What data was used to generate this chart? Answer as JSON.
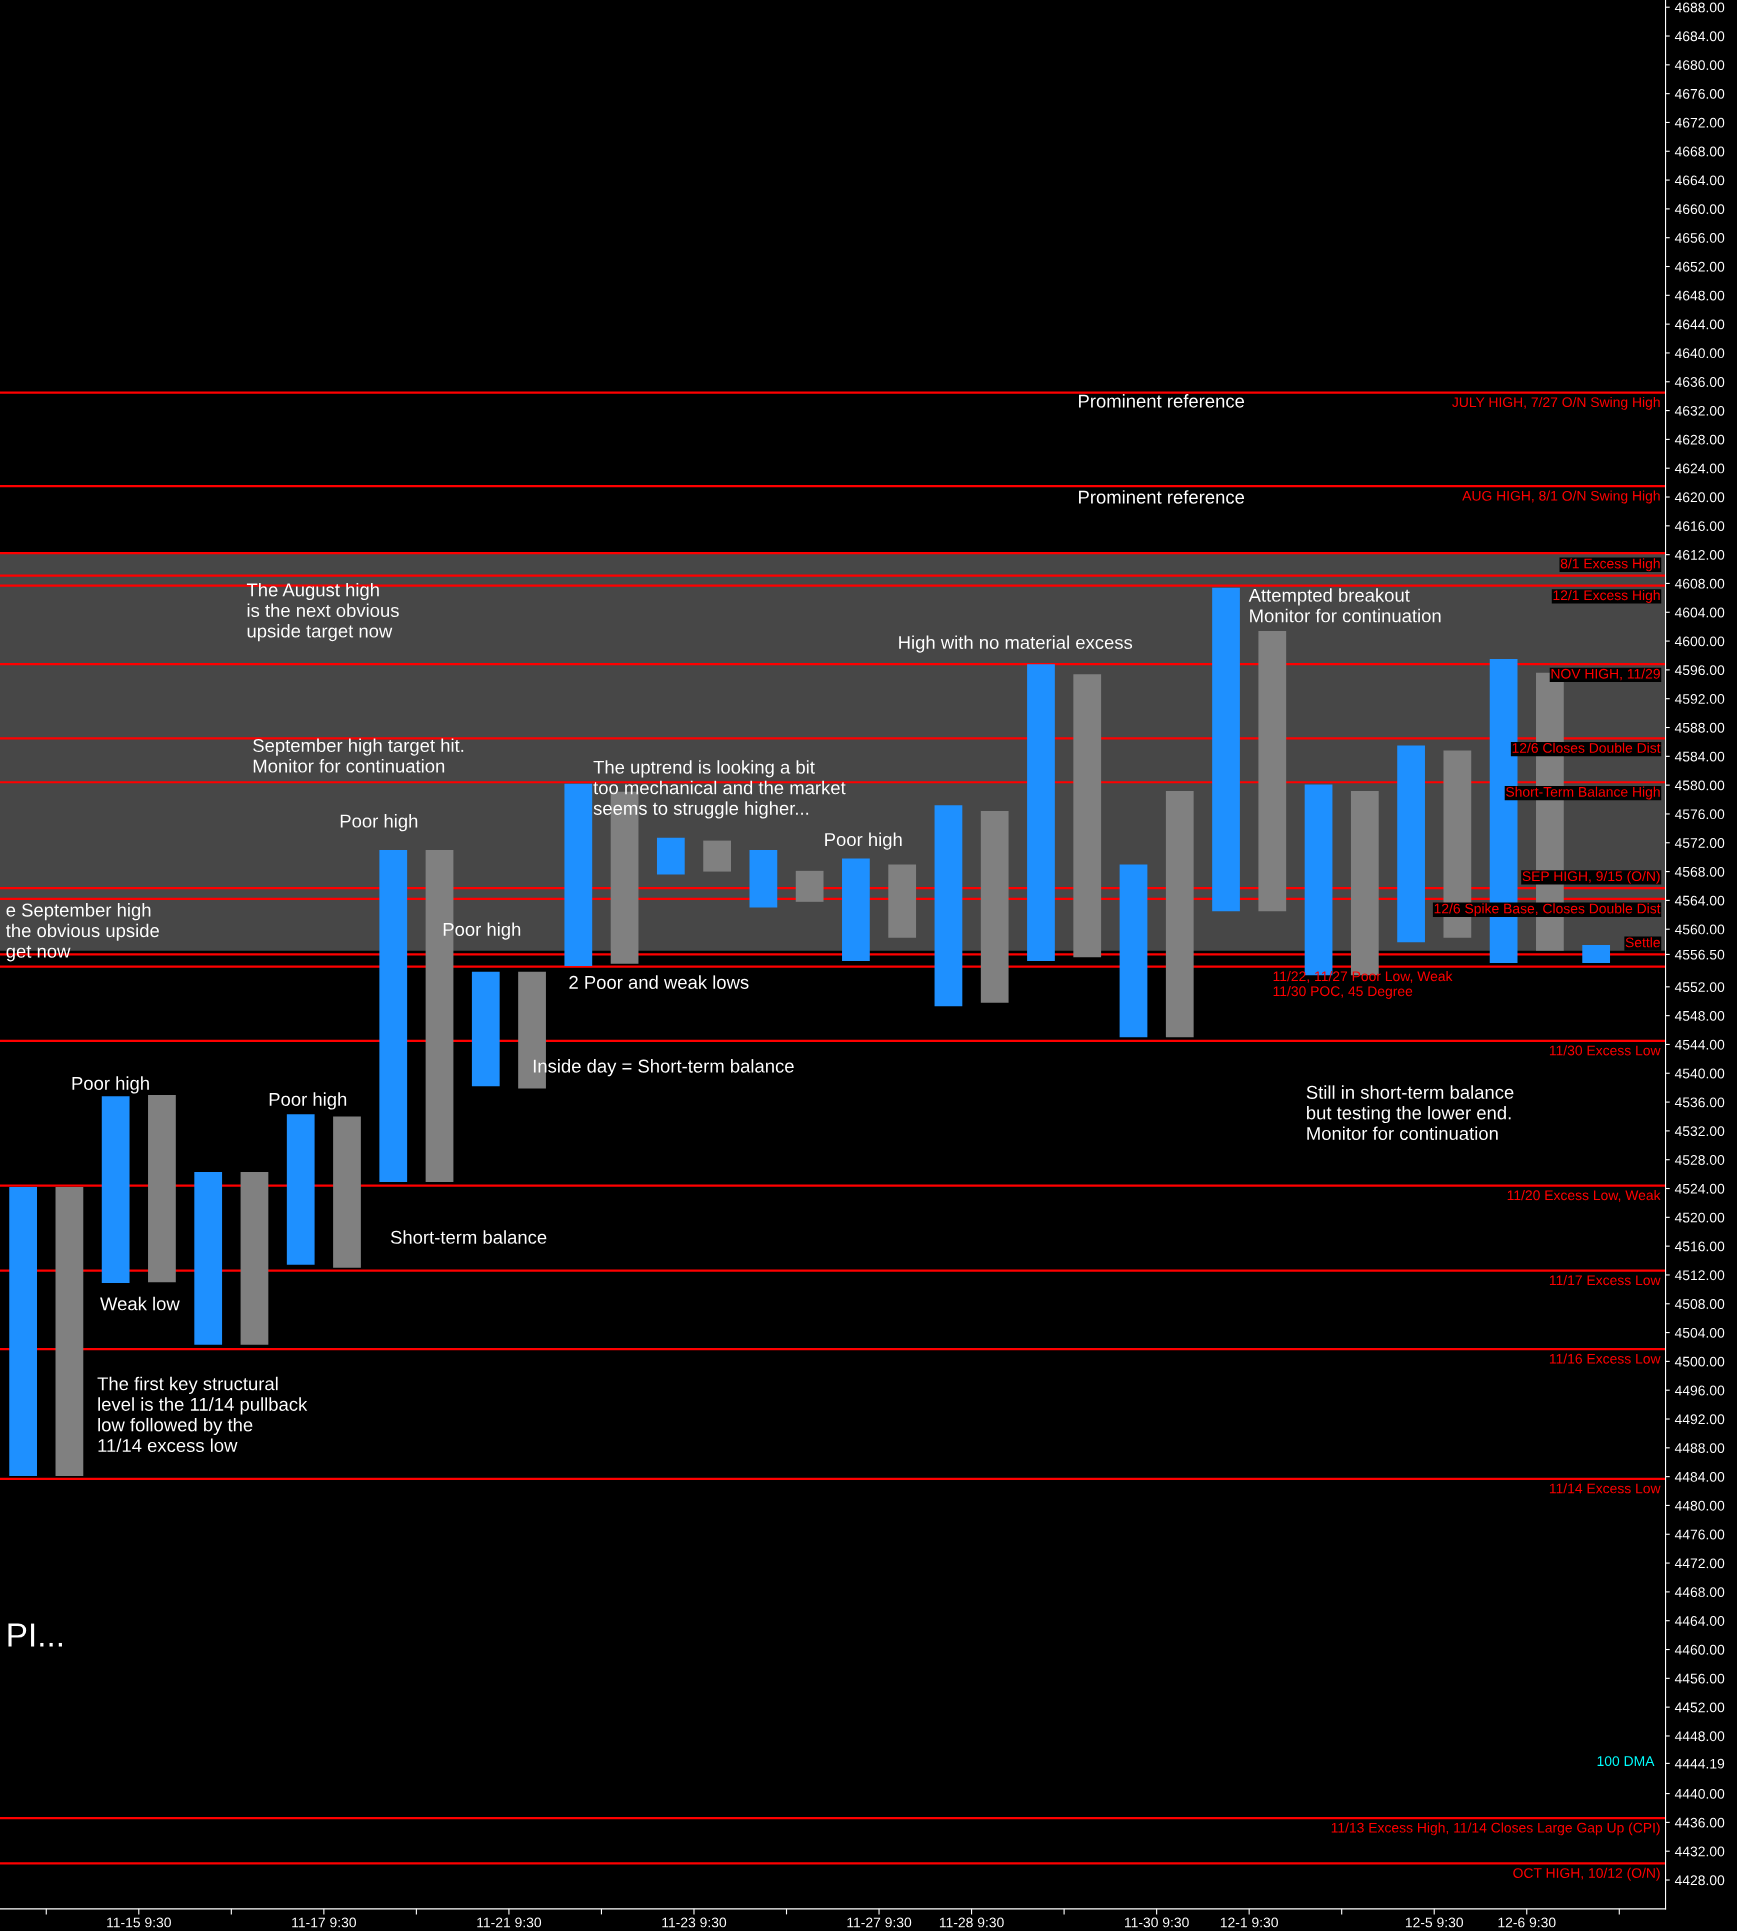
{
  "chart_data": {
    "type": "bar",
    "categories": [
      null,
      "11-15 9:30",
      null,
      "11-17 9:30",
      null,
      "11-21 9:30",
      null,
      "11-23 9:30",
      null,
      "11-27 9:30",
      "11-28 9:30",
      null,
      "11-30 9:30",
      "12-1 9:30",
      null,
      "12-5 9:30",
      "12-6 9:30",
      null
    ],
    "series": [
      {
        "color": "#1e90ff",
        "base": [
          4484.1,
          4510.9,
          4502.3,
          4513.4,
          4524.9,
          4538.2,
          4554.9,
          4567.6,
          4563,
          4555.6,
          4549.3,
          4555.6,
          4545,
          4562.5,
          4553.6,
          4558.2,
          4555.3,
          4555.3
        ],
        "values": [
          40.1,
          25.9,
          24,
          20.9,
          46.1,
          15.9,
          25.3,
          5.1,
          8,
          14.2,
          27.9,
          41.2,
          24,
          44.9,
          26.5,
          27.3,
          42.2,
          2.5
        ]
      },
      {
        "color": "#808080",
        "base": [
          4484.1,
          4511,
          4502.3,
          4513,
          4524.9,
          4537.9,
          4555.2,
          4568,
          4563.8,
          4558.8,
          4549.8,
          4556.1,
          4545,
          4562.5,
          4553.6,
          4558.8,
          4557,
          null
        ],
        "values": [
          40.1,
          26,
          24,
          21,
          46.1,
          16.2,
          23.9,
          4.3,
          4.3,
          10.2,
          26.6,
          39.3,
          34.2,
          38.9,
          25.6,
          26,
          38.6,
          null
        ]
      }
    ],
    "ylim": [
      4424,
      4689
    ],
    "yticks": [
      {
        "value": 4428,
        "label": "4428.00"
      },
      {
        "value": 4432,
        "label": "4432.00"
      },
      {
        "value": 4436,
        "label": "4436.00"
      },
      {
        "value": 4440,
        "label": "4440.00"
      },
      {
        "value": 4444.19,
        "label": "4444.19"
      },
      {
        "value": 4448,
        "label": "4448.00"
      },
      {
        "value": 4452,
        "label": "4452.00"
      },
      {
        "value": 4456,
        "label": "4456.00"
      },
      {
        "value": 4460,
        "label": "4460.00"
      },
      {
        "value": 4464,
        "label": "4464.00"
      },
      {
        "value": 4468,
        "label": "4468.00"
      },
      {
        "value": 4472,
        "label": "4472.00"
      },
      {
        "value": 4476,
        "label": "4476.00"
      },
      {
        "value": 4480,
        "label": "4480.00"
      },
      {
        "value": 4484,
        "label": "4484.00"
      },
      {
        "value": 4488,
        "label": "4488.00"
      },
      {
        "value": 4492,
        "label": "4492.00"
      },
      {
        "value": 4496,
        "label": "4496.00"
      },
      {
        "value": 4500,
        "label": "4500.00"
      },
      {
        "value": 4504,
        "label": "4504.00"
      },
      {
        "value": 4508,
        "label": "4508.00"
      },
      {
        "value": 4512,
        "label": "4512.00"
      },
      {
        "value": 4516,
        "label": "4516.00"
      },
      {
        "value": 4520,
        "label": "4520.00"
      },
      {
        "value": 4524,
        "label": "4524.00"
      },
      {
        "value": 4528,
        "label": "4528.00"
      },
      {
        "value": 4532,
        "label": "4532.00"
      },
      {
        "value": 4536,
        "label": "4536.00"
      },
      {
        "value": 4540,
        "label": "4540.00"
      },
      {
        "value": 4544,
        "label": "4544.00"
      },
      {
        "value": 4548,
        "label": "4548.00"
      },
      {
        "value": 4552,
        "label": "4552.00"
      },
      {
        "value": 4556.5,
        "label": "4556.50"
      },
      {
        "value": 4560,
        "label": "4560.00"
      },
      {
        "value": 4564,
        "label": "4564.00"
      },
      {
        "value": 4568,
        "label": "4568.00"
      },
      {
        "value": 4572,
        "label": "4572.00"
      },
      {
        "value": 4576,
        "label": "4576.00"
      },
      {
        "value": 4580,
        "label": "4580.00"
      },
      {
        "value": 4584,
        "label": "4584.00"
      },
      {
        "value": 4588,
        "label": "4588.00"
      },
      {
        "value": 4592,
        "label": "4592.00"
      },
      {
        "value": 4596,
        "label": "4596.00"
      },
      {
        "value": 4600,
        "label": "4600.00"
      },
      {
        "value": 4604,
        "label": "4604.00"
      },
      {
        "value": 4608,
        "label": "4608.00"
      },
      {
        "value": 4612,
        "label": "4612.00"
      },
      {
        "value": 4616,
        "label": "4616.00"
      },
      {
        "value": 4620,
        "label": "4620.00"
      },
      {
        "value": 4624,
        "label": "4624.00"
      },
      {
        "value": 4628,
        "label": "4628.00"
      },
      {
        "value": 4632,
        "label": "4632.00"
      },
      {
        "value": 4636,
        "label": "4636.00"
      },
      {
        "value": 4640,
        "label": "4640.00"
      },
      {
        "value": 4644,
        "label": "4644.00"
      },
      {
        "value": 4648,
        "label": "4648.00"
      },
      {
        "value": 4652,
        "label": "4652.00"
      },
      {
        "value": 4656,
        "label": "4656.00"
      },
      {
        "value": 4660,
        "label": "4660.00"
      },
      {
        "value": 4664,
        "label": "4664.00"
      },
      {
        "value": 4668,
        "label": "4668.00"
      },
      {
        "value": 4672,
        "label": "4672.00"
      },
      {
        "value": 4676,
        "label": "4676.00"
      },
      {
        "value": 4680,
        "label": "4680.00"
      },
      {
        "value": 4684,
        "label": "4684.00"
      },
      {
        "value": 4688,
        "label": "4688.00"
      }
    ],
    "grid": false,
    "bands": [
      {
        "axis": "y",
        "from": 4557.0,
        "to": 4612.2,
        "label": null,
        "color": "#474747"
      }
    ],
    "ref_lines": [
      {
        "axis": "y",
        "value": 4634.5,
        "label": "JULY HIGH, 7/27 O/N Swing High",
        "color": "#ff0000"
      },
      {
        "axis": "y",
        "value": 4621.5,
        "label": "AUG HIGH, 8/1 O/N Swing High",
        "color": "#ff0000"
      },
      {
        "axis": "y",
        "value": 4612.2,
        "label": null,
        "color": "#ff0000"
      },
      {
        "axis": "y",
        "value": 4609.1,
        "label": "8/1 Excess High",
        "color": "#ff0000"
      },
      {
        "axis": "y",
        "value": 4607.7,
        "label": "12/1 Excess High",
        "color": "#ff0000"
      },
      {
        "axis": "y",
        "value": 4596.8,
        "label": "NOV HIGH, 11/29",
        "color": "#ff0000"
      },
      {
        "axis": "y",
        "value": 4586.5,
        "label": "12/6 Closes Double Dist",
        "color": "#ff0000"
      },
      {
        "axis": "y",
        "value": 4580.4,
        "label": "Short-Term Balance High",
        "color": "#ff0000"
      },
      {
        "axis": "y",
        "value": 4565.7,
        "label": "SEP HIGH, 9/15 (O/N)",
        "color": "#ff0000"
      },
      {
        "axis": "y",
        "value": 4564.2,
        "label": "12/6 Spike Base, Closes Double Dist",
        "color": "#ff0000"
      },
      {
        "axis": "y",
        "value": 4556.5,
        "label": "Settle",
        "color": "#ff0000"
      },
      {
        "axis": "y",
        "value": 4554.8,
        "label": "11/22, 11/27 Poor Low, Weak\n11/30 POC, 45 Degree",
        "color": "#ff0000"
      },
      {
        "axis": "y",
        "value": 4544.5,
        "label": "11/30 Excess Low",
        "color": "#ff0000"
      },
      {
        "axis": "y",
        "value": 4524.4,
        "label": "11/20 Excess Low, Weak",
        "color": "#ff0000"
      },
      {
        "axis": "y",
        "value": 4512.6,
        "label": "11/17 Excess Low",
        "color": "#ff0000"
      },
      {
        "axis": "y",
        "value": 4501.7,
        "label": "11/16 Excess Low",
        "color": "#ff0000"
      },
      {
        "axis": "y",
        "value": 4483.7,
        "label": "11/14 Excess Low",
        "color": "#ff0000"
      },
      {
        "axis": "y",
        "value": 4436.6,
        "label": "11/13 Excess High, 11/14 Closes Large Gap Up (CPI)",
        "color": "#ff0000"
      },
      {
        "axis": "y",
        "value": 4430.3,
        "label": "OCT HIGH, 10/12 (O/N)",
        "color": "#ff0000"
      }
    ],
    "annotations": [
      "Prominent reference",
      "Prominent reference",
      "The August high\nis the next obvious\nupside target now",
      "September high target hit.\nMonitor for continuation",
      "The uptrend is looking a bit\ntoo mechanical and the market\nseems to struggle higher...",
      "High with no material excess",
      "Attempted breakout\nMonitor for continuation",
      "Poor high",
      "Poor high",
      "Poor high",
      "2 Poor and weak lows",
      "Inside day = Short-term balance",
      "Still in short-term balance\nbut testing the lower end.\nMonitor for continuation",
      "e September high\nthe obvious upside\nget now",
      "Poor high",
      "Poor high",
      "Weak low",
      "Short-term balance",
      "The first key structural\nlevel is the 11/14 pullback\nlow followed by the\n11/14 excess low",
      "PI...",
      "100 DMA"
    ]
  }
}
